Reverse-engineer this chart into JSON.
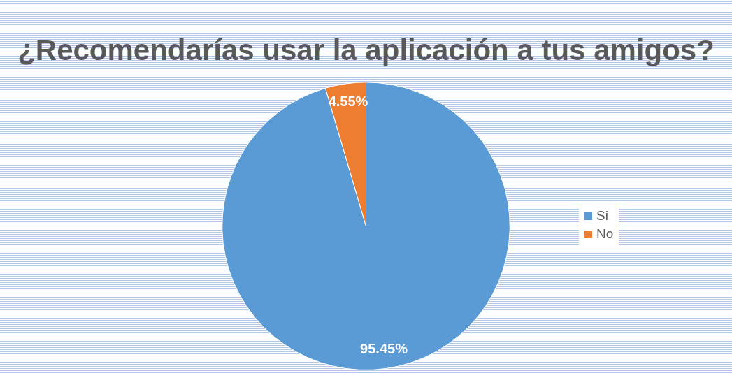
{
  "chart_data": {
    "type": "pie",
    "title": "¿Recomendarías usar la aplicación a tus amigos?",
    "categories": [
      "Si",
      "No"
    ],
    "values": [
      95.45,
      4.55
    ],
    "colors": [
      "#5b9bd5",
      "#ed7d31"
    ],
    "value_labels": [
      "95.45%",
      "4.55%"
    ],
    "legend": "right"
  }
}
